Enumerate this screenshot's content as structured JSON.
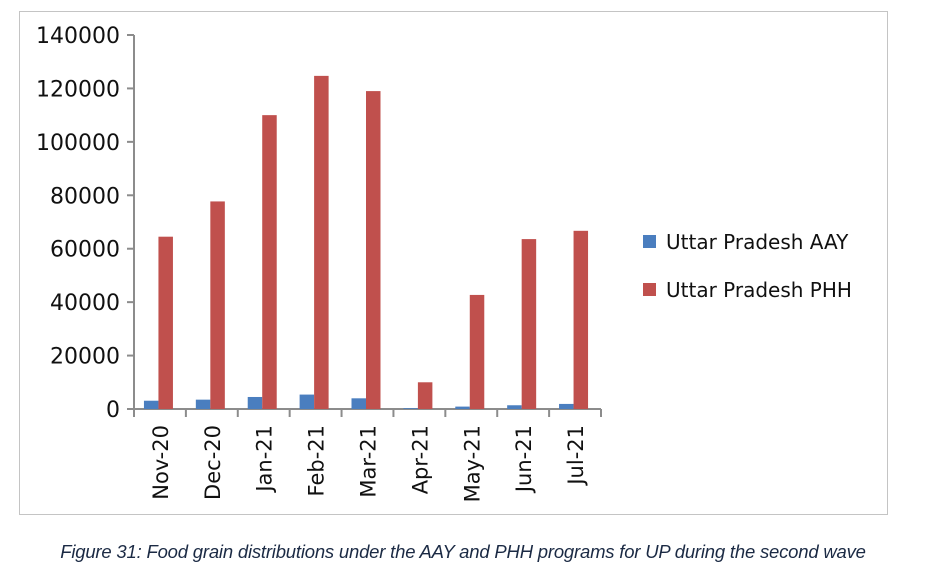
{
  "caption": "Figure 31: Food grain distributions under the AAY and PHH programs for UP during the second wave",
  "colors": {
    "aay": "#4a7ebf",
    "phh": "#c0504d",
    "axis": "#8c8c8c",
    "frame": "#c4c4c4",
    "caption": "#1b2a44"
  },
  "chart_data": {
    "type": "bar",
    "title": "",
    "xlabel": "",
    "ylabel": "",
    "categories": [
      "Nov-20",
      "Dec-20",
      "Jan-21",
      "Feb-21",
      "Mar-21",
      "Apr-21",
      "May-21",
      "Jun-21",
      "Jul-21"
    ],
    "series": [
      {
        "name": "Uttar Pradesh AAY",
        "color": "#4a7ebf",
        "values": [
          3100,
          3500,
          4500,
          5400,
          4000,
          300,
          900,
          1400,
          1900
        ]
      },
      {
        "name": "Uttar Pradesh PHH",
        "color": "#c0504d",
        "values": [
          64500,
          77700,
          110000,
          124700,
          119000,
          10000,
          42700,
          63600,
          66700
        ]
      }
    ],
    "ylim": [
      0,
      140000
    ],
    "yticks": [
      0,
      20000,
      40000,
      60000,
      80000,
      100000,
      120000,
      140000
    ],
    "ytick_labels": [
      "0",
      "20000",
      "40000",
      "60000",
      "80000",
      "100000",
      "120000",
      "140000"
    ],
    "grid": false,
    "legend": {
      "position": "right",
      "entries": [
        "Uttar Pradesh AAY",
        "Uttar Pradesh PHH"
      ]
    }
  }
}
